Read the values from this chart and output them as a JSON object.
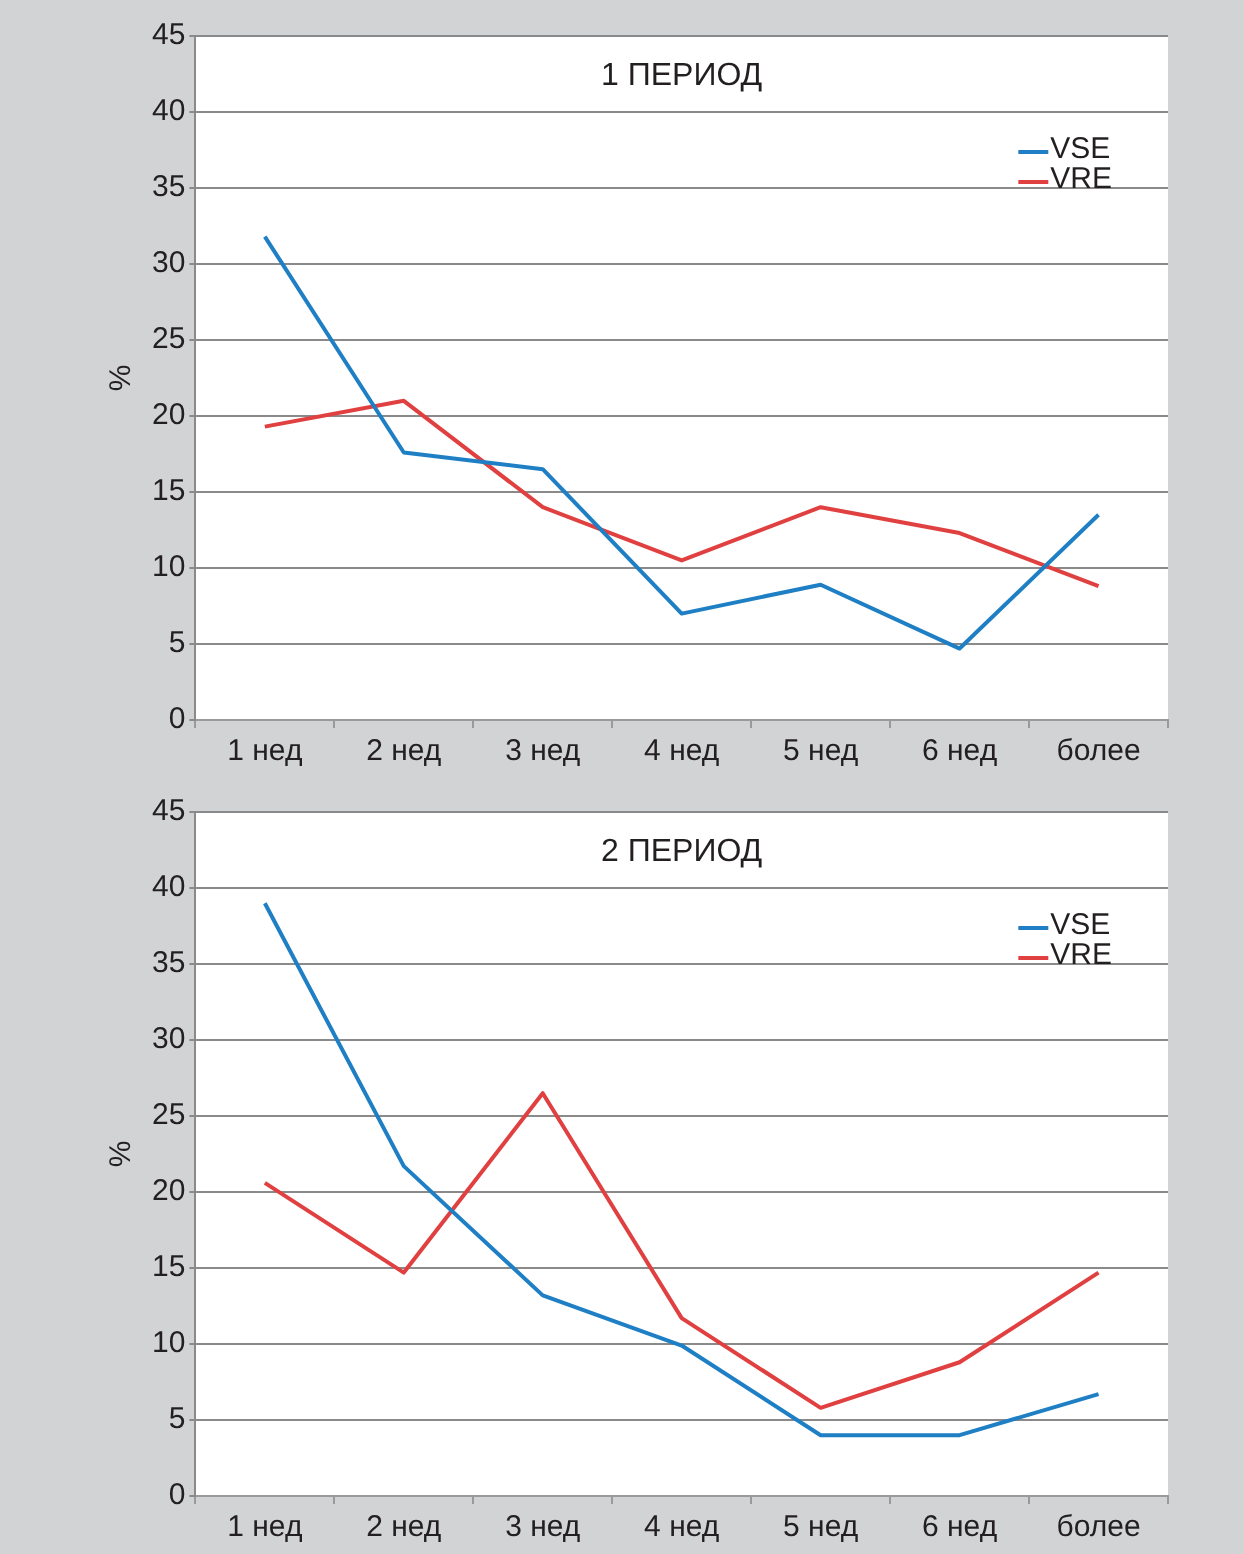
{
  "chart_data": [
    {
      "type": "line",
      "title": "1 ПЕРИОД",
      "ylabel": "%",
      "categories": [
        "1 нед",
        "2 нед",
        "3 нед",
        "4 нед",
        "5 нед",
        "6 нед",
        "более"
      ],
      "series": [
        {
          "name": "VSE",
          "color": "#1f7fc4",
          "values": [
            31.8,
            17.6,
            16.5,
            7.0,
            8.9,
            4.7,
            13.5
          ]
        },
        {
          "name": "VRE",
          "color": "#e04040",
          "values": [
            19.3,
            21.0,
            14.0,
            10.5,
            14.0,
            12.3,
            8.8
          ]
        }
      ],
      "ylim": [
        0,
        45
      ],
      "yticks": [
        0,
        5,
        10,
        15,
        20,
        25,
        30,
        35,
        40,
        45
      ],
      "grid": "y",
      "legend": "top right",
      "marker": "none",
      "line_style": "solid"
    },
    {
      "type": "line",
      "title": "2 ПЕРИОД",
      "ylabel": "%",
      "categories": [
        "1 нед",
        "2 нед",
        "3 нед",
        "4 нед",
        "5 нед",
        "6 нед",
        "более"
      ],
      "series": [
        {
          "name": "VSE",
          "color": "#1f7fc4",
          "values": [
            39.0,
            21.7,
            13.2,
            9.9,
            4.0,
            4.0,
            6.7
          ]
        },
        {
          "name": "VRE",
          "color": "#e04040",
          "values": [
            20.6,
            14.7,
            26.5,
            11.7,
            5.8,
            8.8,
            14.7
          ]
        }
      ],
      "ylim": [
        0,
        45
      ],
      "yticks": [
        0,
        5,
        10,
        15,
        20,
        25,
        30,
        35,
        40,
        45
      ],
      "grid": "y",
      "legend": "top right",
      "marker": "none",
      "line_style": "solid"
    }
  ]
}
